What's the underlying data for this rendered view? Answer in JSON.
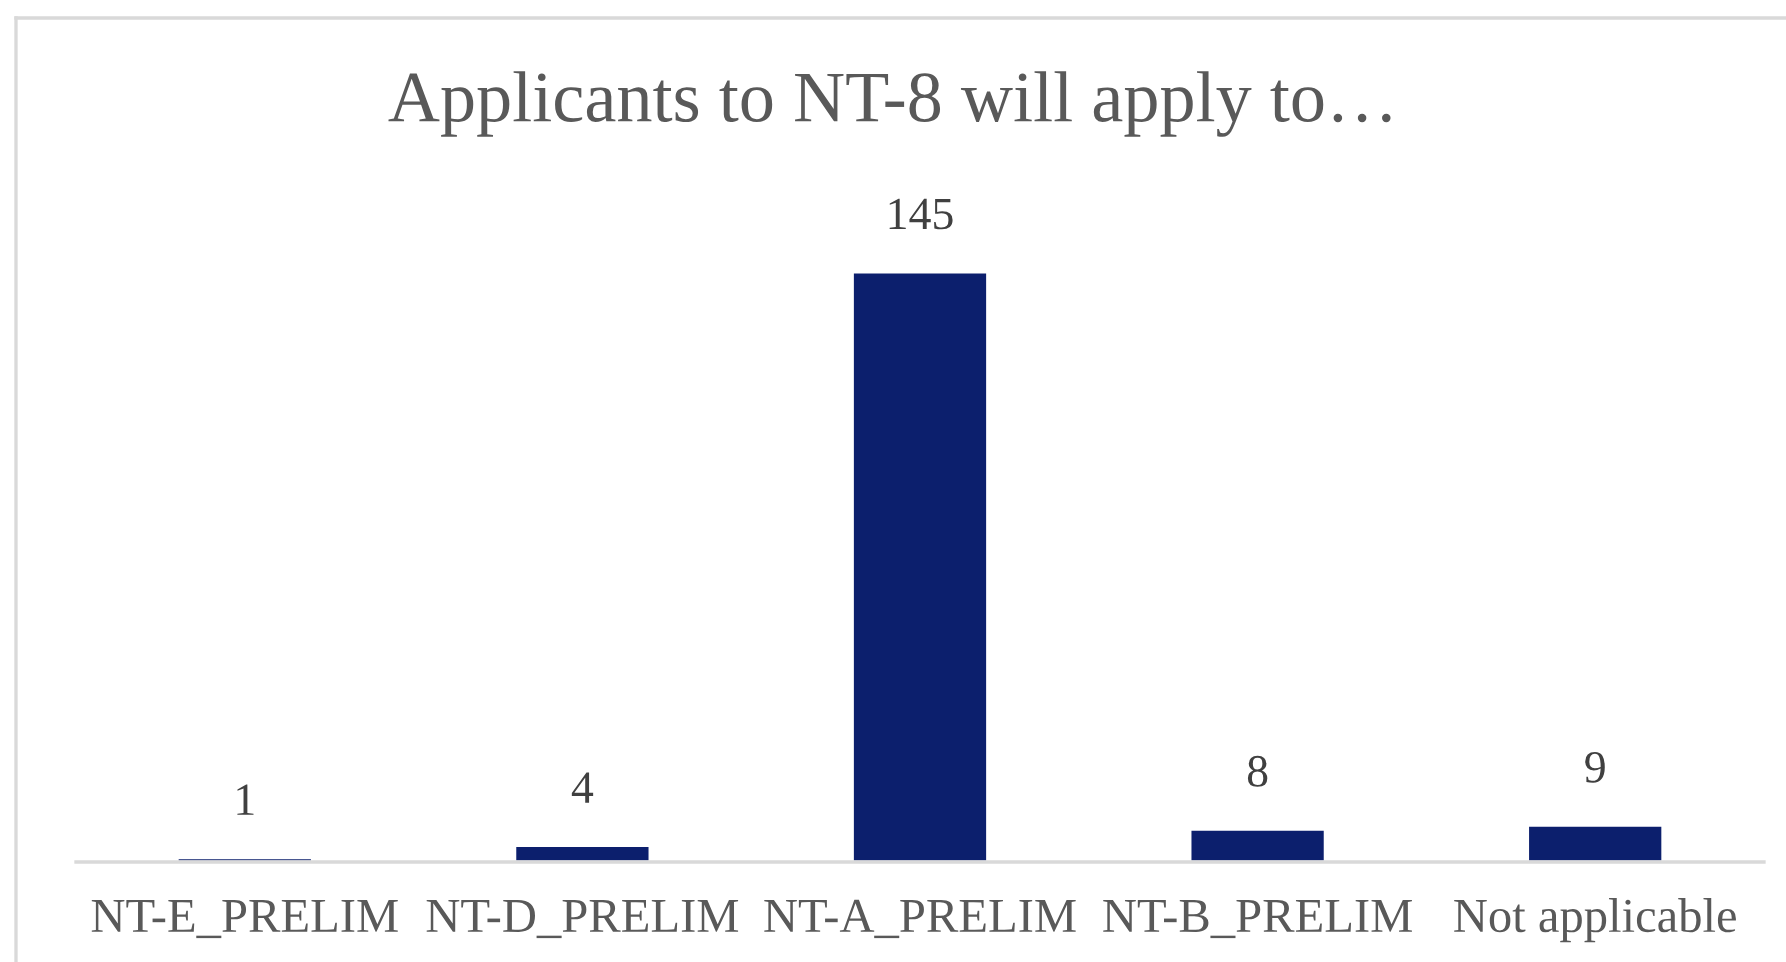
{
  "chart_data": {
    "type": "bar",
    "title": "Applicants to NT-8 will apply to…",
    "categories": [
      "NT-E_PRELIM",
      "NT-D_PRELIM",
      "NT-A_PRELIM",
      "NT-B_PRELIM",
      "Not applicable"
    ],
    "values": [
      1,
      4,
      145,
      8,
      9
    ],
    "color": "#0c1f6d",
    "data_labels": true
  }
}
